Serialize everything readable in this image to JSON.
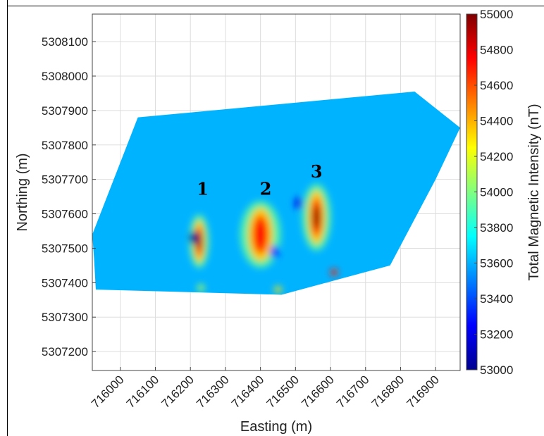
{
  "chart_data": {
    "type": "heatmap",
    "xlabel": "Easting (m)",
    "ylabel": "Northing (m)",
    "colorbar_label": "Total Magnetic Intensity (nT)",
    "xlim": [
      715920,
      716970
    ],
    "ylim": [
      5307145,
      5308180
    ],
    "x_ticks": [
      716000,
      716100,
      716200,
      716300,
      716400,
      716500,
      716600,
      716700,
      716800,
      716900
    ],
    "y_ticks": [
      5307200,
      5307300,
      5307400,
      5307500,
      5307600,
      5307700,
      5307800,
      5307900,
      5308000,
      5308100
    ],
    "colorbar_range": [
      53000,
      55000
    ],
    "colorbar_ticks": [
      53000,
      53200,
      53400,
      53600,
      53800,
      54000,
      54200,
      54400,
      54600,
      54800,
      55000
    ],
    "colormap": "jet",
    "background_value": 53600,
    "grid": true,
    "survey_outline": [
      [
        715925,
        5307470
      ],
      [
        715930,
        5307380
      ],
      [
        716460,
        5307365
      ],
      [
        716770,
        5307450
      ],
      [
        716900,
        5307700
      ],
      [
        716970,
        5307850
      ],
      [
        716840,
        5307955
      ],
      [
        716050,
        5307880
      ],
      [
        715920,
        5307540
      ]
    ],
    "anomalies": [
      {
        "label": "1",
        "label_x": 716235,
        "label_y": 5307655,
        "easting": 716225,
        "northing": 5307520,
        "peak_nT": 55000,
        "width_m": 22,
        "length_m": 120
      },
      {
        "label": "2",
        "label_x": 716415,
        "label_y": 5307655,
        "easting": 716400,
        "northing": 5307540,
        "peak_nT": 54750,
        "width_m": 45,
        "length_m": 150
      },
      {
        "label": "3",
        "label_x": 716560,
        "label_y": 5307705,
        "easting": 716560,
        "northing": 5307590,
        "peak_nT": 55000,
        "width_m": 32,
        "length_m": 150
      }
    ],
    "lows": [
      {
        "easting": 716210,
        "northing": 5307530,
        "value_nT": 53000
      },
      {
        "easting": 716510,
        "northing": 5307630,
        "value_nT": 53200
      },
      {
        "easting": 716440,
        "northing": 5307490,
        "value_nT": 53300
      }
    ],
    "minor_highs": [
      {
        "easting": 716610,
        "northing": 5307430,
        "value_nT": 54700
      },
      {
        "easting": 716450,
        "northing": 5307380,
        "value_nT": 54300
      },
      {
        "easting": 716230,
        "northing": 5307385,
        "value_nT": 54100
      }
    ]
  }
}
